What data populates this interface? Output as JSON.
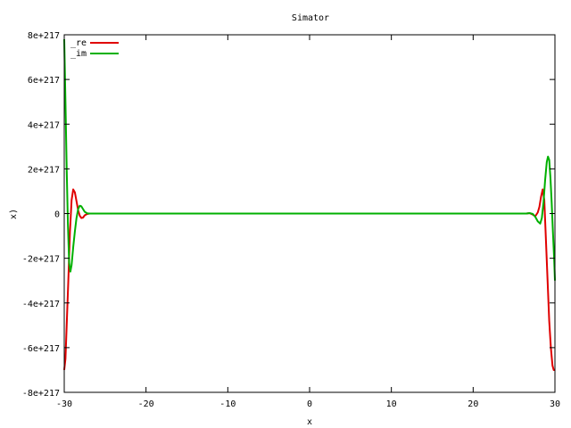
{
  "chart_data": {
    "type": "line",
    "title": "Simator",
    "xlabel": "x",
    "ylabel": "x)",
    "xlim": [
      -30,
      30
    ],
    "ylim": [
      -8e+217,
      8e+217
    ],
    "x_ticks": [
      -30,
      -20,
      -10,
      0,
      10,
      20,
      30
    ],
    "x_tick_labels": [
      "-30",
      "-20",
      "-10",
      "0",
      "10",
      "20",
      "30"
    ],
    "y_ticks": [
      -8e+217,
      -6e+217,
      -4e+217,
      -2e+217,
      0,
      2e+217,
      4e+217,
      6e+217,
      8e+217
    ],
    "y_tick_labels": [
      "-8e+217",
      "-6e+217",
      "-4e+217",
      "-2e+217",
      "0",
      "2e+217",
      "4e+217",
      "6e+217",
      "8e+217"
    ],
    "grid": false,
    "legend_position": "top-left",
    "series": [
      {
        "name": "_re",
        "color": "#e00000",
        "x": [
          -30,
          -29.85,
          -29.7,
          -29.5,
          -29.3,
          -29.1,
          -28.9,
          -28.7,
          -28.5,
          -28.3,
          -28.1,
          -27.9,
          -27.7,
          -27.5,
          -27.2,
          -26.9,
          -26.6,
          -26.2,
          -25.8,
          -25,
          0,
          25.6,
          26.0,
          26.5,
          26.9,
          27.3,
          27.6,
          27.9,
          28.1,
          28.3,
          28.5,
          28.7,
          28.9,
          29.1,
          29.3,
          29.5,
          29.7,
          29.85,
          30
        ],
        "y": [
          -7e+217,
          -6.5e+217,
          -5e+217,
          -3e+217,
          -8e+216,
          6e+216,
          1.08e+217,
          9.5e+216,
          5.5e+216,
          1.5e+216,
          -1e+216,
          -2e+216,
          -1.8e+216,
          -8e+215,
          -2e+215,
          0,
          0,
          0,
          0,
          0,
          0,
          0,
          0,
          0,
          2e+215,
          -5e+215,
          -1.2e+216,
          5e+215,
          3e+216,
          7.5e+216,
          1.08e+217,
          6e+216,
          -1.2e+217,
          -3e+217,
          -4.8e+217,
          -6e+217,
          -6.8e+217,
          -7e+217,
          -7e+217
        ]
      },
      {
        "name": "_im",
        "color": "#00b000",
        "x": [
          -30,
          -29.85,
          -29.7,
          -29.55,
          -29.4,
          -29.25,
          -29.1,
          -28.9,
          -28.7,
          -28.5,
          -28.3,
          -28.1,
          -27.9,
          -27.7,
          -27.5,
          -27.2,
          -26.9,
          -26.5,
          -26.1,
          -25.6,
          -25,
          0,
          25.5,
          26.0,
          26.5,
          26.9,
          27.3,
          27.6,
          27.9,
          28.2,
          28.4,
          28.6,
          28.8,
          29.0,
          29.15,
          29.3,
          29.45,
          29.6,
          29.75,
          29.9,
          30
        ],
        "y": [
          7.8e+217,
          5e+217,
          2e+217,
          -5e+216,
          -2.2e+217,
          -2.6e+217,
          -2.3e+217,
          -1.5e+217,
          -8e+216,
          -2e+216,
          2e+216,
          3.5e+216,
          3.2e+216,
          2e+216,
          8e+215,
          1e+215,
          0,
          0,
          0,
          0,
          0,
          0,
          0,
          0,
          0,
          2e+215,
          -2e+215,
          -1.5e+216,
          -3.5e+216,
          -4.5e+216,
          -2e+216,
          5e+216,
          1.5e+217,
          2.3e+217,
          2.55e+217,
          2.4e+217,
          1.6e+217,
          5e+216,
          -8e+216,
          -2e+217,
          -3e+217
        ]
      }
    ]
  }
}
